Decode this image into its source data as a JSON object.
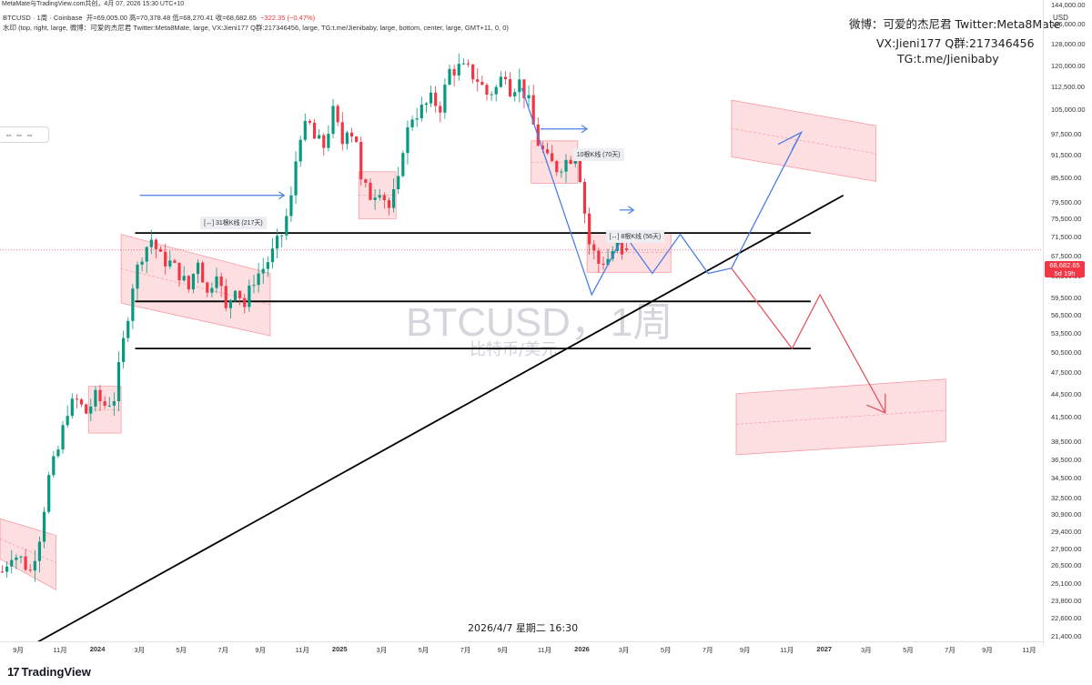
{
  "header": {
    "top_line": "MetaMate与TradingView.com共创，4月 07, 2026 15:30 UTC+10",
    "legend_symbol": "BTCUSD · 1周 · Coinbase",
    "legend_ohlc": "开=69,005.00 高=70,378.48 低=68,270.41 收=68,682.65",
    "legend_change": "−322.35 (−0.47%)",
    "legend_watermark": "水印 (top, right, large, 微博：可爱的杰尼君 Twitter:Meta8Mate, large, VX:Jieni177 Q群:217346456, large, TG:t.me/Jienibaby, large, bottom, center, large, GMT+11, 0, 0)"
  },
  "watermark": {
    "line1": "微博：可爱的杰尼君 Twitter:Meta8Mate",
    "line2": "VX:Jieni177 Q群:217346456",
    "line3": "TG:t.me/Jienibaby",
    "center_symbol": "BTCUSD，1周",
    "center_sub": "比特币/美元"
  },
  "controls": {
    "label": "⇔  ⇔  ⇔"
  },
  "axis": {
    "currency": "USD",
    "current_price": "68,682.65",
    "countdown": "5d 19h",
    "date_stamp": "2026/4/7 星期二 16:30",
    "brand": "TradingView"
  },
  "chart_data": {
    "type": "candlestick",
    "symbol": "BTCUSD",
    "interval": "1周",
    "exchange": "Coinbase",
    "y_scale": "log",
    "ylim": [
      21000,
      146000
    ],
    "last": {
      "open": 69005.0,
      "high": 70378.48,
      "low": 68270.41,
      "close": 68682.65,
      "change": -322.35,
      "change_pct": -0.47
    },
    "price_ticks": [
      144000,
      136000,
      128000,
      120000,
      112500,
      105000,
      97500,
      91500,
      85500,
      79500,
      75500,
      71500,
      67500,
      63500,
      59500,
      56500,
      53500,
      50500,
      47500,
      44500,
      41500,
      38500,
      36500,
      34500,
      32500,
      30900,
      29400,
      27900,
      26500,
      25100,
      23800,
      22600,
      21400
    ],
    "time_ticks": [
      {
        "label": "9月",
        "t": 0
      },
      {
        "label": "11月",
        "t": 9
      },
      {
        "label": "2024",
        "t": 17,
        "bold": true
      },
      {
        "label": "3月",
        "t": 26
      },
      {
        "label": "5月",
        "t": 35
      },
      {
        "label": "7月",
        "t": 44
      },
      {
        "label": "9月",
        "t": 52
      },
      {
        "label": "11月",
        "t": 61
      },
      {
        "label": "2025",
        "t": 69,
        "bold": true
      },
      {
        "label": "3月",
        "t": 78
      },
      {
        "label": "5月",
        "t": 87
      },
      {
        "label": "7月",
        "t": 96
      },
      {
        "label": "9月",
        "t": 104
      },
      {
        "label": "11月",
        "t": 113
      },
      {
        "label": "2026",
        "t": 121,
        "bold": true
      },
      {
        "label": "3月",
        "t": 130
      },
      {
        "label": "5月",
        "t": 139
      },
      {
        "label": "7月",
        "t": 148
      },
      {
        "label": "9月",
        "t": 156
      },
      {
        "label": "11月",
        "t": 165
      },
      {
        "label": "2027",
        "t": 173,
        "bold": true
      },
      {
        "label": "3月",
        "t": 182
      },
      {
        "label": "5月",
        "t": 191
      },
      {
        "label": "7月",
        "t": 200
      },
      {
        "label": "9月",
        "t": 208
      },
      {
        "label": "11月",
        "t": 217
      }
    ],
    "anchors": [
      [
        0,
        26000
      ],
      [
        2,
        27500
      ],
      [
        4,
        27000
      ],
      [
        6,
        26000
      ],
      [
        8,
        29000
      ],
      [
        10,
        34500
      ],
      [
        12,
        37500
      ],
      [
        14,
        42500
      ],
      [
        16,
        43500
      ],
      [
        18,
        42000
      ],
      [
        20,
        44000
      ],
      [
        22,
        43000
      ],
      [
        24,
        44000
      ],
      [
        26,
        52000
      ],
      [
        28,
        62000
      ],
      [
        30,
        68000
      ],
      [
        32,
        71000
      ],
      [
        34,
        67000
      ],
      [
        36,
        66000
      ],
      [
        38,
        64000
      ],
      [
        40,
        61000
      ],
      [
        42,
        67000
      ],
      [
        44,
        60000
      ],
      [
        46,
        65000
      ],
      [
        48,
        57000
      ],
      [
        50,
        62000
      ],
      [
        52,
        58000
      ],
      [
        54,
        63000
      ],
      [
        56,
        65000
      ],
      [
        58,
        68000
      ],
      [
        60,
        72000
      ],
      [
        62,
        80000
      ],
      [
        63,
        90000
      ],
      [
        64,
        98000
      ],
      [
        66,
        100000
      ],
      [
        67,
        96000
      ],
      [
        69,
        94000
      ],
      [
        71,
        104000
      ],
      [
        73,
        95000
      ],
      [
        74,
        100000
      ],
      [
        76,
        96000
      ],
      [
        77,
        84000
      ],
      [
        79,
        81000
      ],
      [
        81,
        83000
      ],
      [
        83,
        78000
      ],
      [
        85,
        84000
      ],
      [
        86,
        94000
      ],
      [
        88,
        103000
      ],
      [
        90,
        105000
      ],
      [
        92,
        108000
      ],
      [
        94,
        106000
      ],
      [
        96,
        118000
      ],
      [
        98,
        119000
      ],
      [
        100,
        118000
      ],
      [
        102,
        115000
      ],
      [
        104,
        110000
      ],
      [
        106,
        112000
      ],
      [
        108,
        118000
      ],
      [
        109,
        112000
      ],
      [
        111,
        114000
      ],
      [
        113,
        107000
      ],
      [
        114,
        100000
      ],
      [
        115,
        95000
      ],
      [
        117,
        90000
      ],
      [
        119,
        88000
      ],
      [
        121,
        90000
      ],
      [
        123,
        92000
      ],
      [
        124,
        86000
      ],
      [
        125,
        77000
      ],
      [
        126,
        70000
      ],
      [
        128,
        66000
      ],
      [
        130,
        67000
      ],
      [
        132,
        70000
      ],
      [
        133,
        67000
      ],
      [
        134,
        68683
      ]
    ],
    "levels": [
      72300,
      58800,
      51000
    ],
    "zones": [
      {
        "name": "consolidation-2023",
        "t0": 0,
        "t1": 12,
        "top": [
          30500,
          29000
        ],
        "bottom": [
          27000,
          24600
        ]
      },
      {
        "name": "consolidation-2024-a",
        "t0": 19,
        "t1": 26,
        "top": [
          45500,
          45500
        ],
        "bottom": [
          39500,
          39500
        ]
      },
      {
        "name": "descending-channel-2024",
        "t0": 26,
        "t1": 58,
        "top": [
          72000,
          64000
        ],
        "bottom": [
          58500,
          53000
        ]
      },
      {
        "name": "consolidation-2025-a",
        "t0": 77,
        "t1": 85,
        "top": [
          87000,
          87000
        ],
        "bottom": [
          75500,
          75500
        ]
      },
      {
        "name": "consolidation-2025-b",
        "t0": 114,
        "t1": 124,
        "top": [
          95500,
          95500
        ],
        "bottom": [
          84000,
          84000
        ]
      },
      {
        "name": "consolidation-2026",
        "t0": 126,
        "t1": 144,
        "top": [
          72300,
          72300
        ],
        "bottom": [
          64200,
          64200
        ]
      },
      {
        "name": "target-up",
        "t0": 157,
        "t1": 188,
        "top": [
          108000,
          100000
        ],
        "bottom": [
          91000,
          84500
        ]
      },
      {
        "name": "target-down",
        "t0": 158,
        "t1": 203,
        "top": [
          44500,
          46500
        ],
        "bottom": [
          37000,
          38500
        ]
      }
    ],
    "trendline": [
      [
        8,
        21000
      ],
      [
        181,
        81000
      ]
    ],
    "labels": [
      {
        "text": "[↔]  31根K线 (217天)",
        "t": 43,
        "p": 75000
      },
      {
        "text": "10根K线 (70天)",
        "t": 123,
        "p": 92000
      },
      {
        "text": "[↔]  8根K线 (56天)",
        "t": 130,
        "p": 72000
      }
    ]
  }
}
